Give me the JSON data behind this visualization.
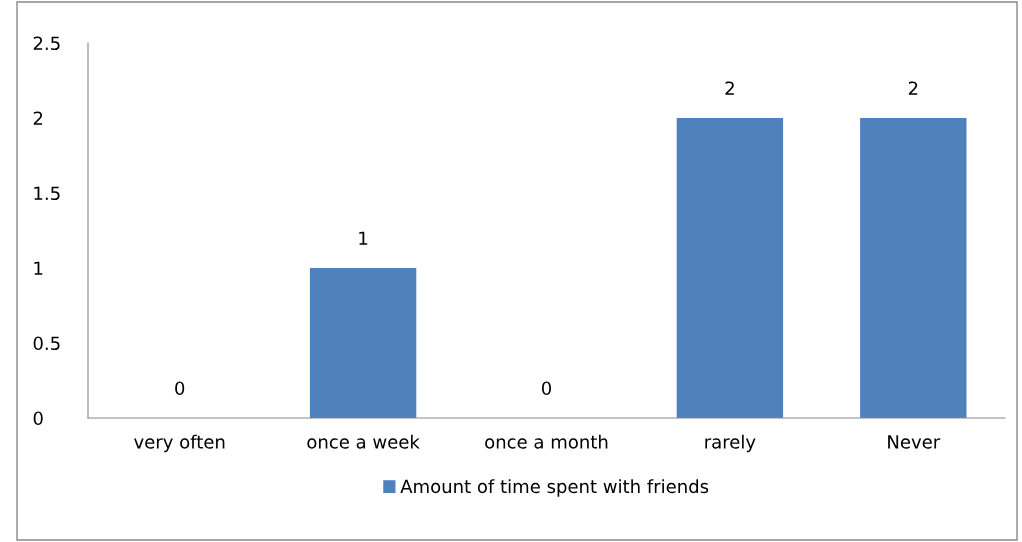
{
  "chart_data": {
    "type": "bar",
    "categories": [
      "very often",
      "once a week",
      "once a month",
      "rarely",
      "Never"
    ],
    "series": [
      {
        "name": "Amount of time spent with friends",
        "color": "#4f81bd",
        "values": [
          0,
          1,
          0,
          2,
          2
        ]
      }
    ],
    "ylim": [
      0,
      2.5
    ],
    "yticks": [
      0,
      0.5,
      1,
      1.5,
      2,
      2.5
    ],
    "data_labels": true,
    "grid": false,
    "legend": "bottom"
  }
}
